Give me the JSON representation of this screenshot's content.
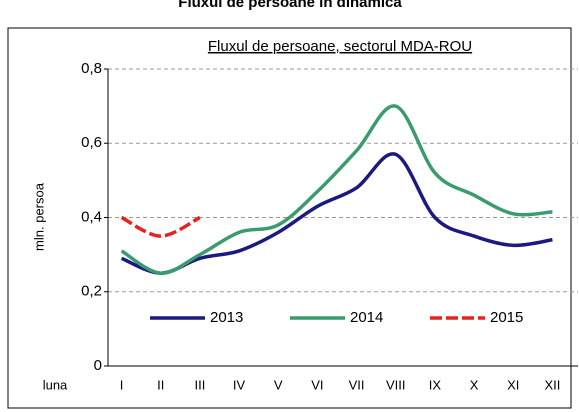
{
  "page_title": "Fluxul de persoane în dinamică",
  "chart_data": {
    "type": "line",
    "title": "Fluxul de persoane, sectorul MDA-ROU",
    "y_label": "mln. persoa",
    "x_label": "luna",
    "categories": [
      "I",
      "II",
      "III",
      "IV",
      "V",
      "VI",
      "VII",
      "VIII",
      "IX",
      "X",
      "XI",
      "XII"
    ],
    "series": [
      {
        "name": "2013",
        "color": "#1a1a80",
        "dashed": false,
        "values": [
          0.29,
          0.25,
          0.29,
          0.31,
          0.36,
          0.43,
          0.48,
          0.57,
          0.4,
          0.35,
          0.325,
          0.34
        ]
      },
      {
        "name": "2014",
        "color": "#3a9c6c",
        "dashed": false,
        "values": [
          0.31,
          0.25,
          0.3,
          0.36,
          0.38,
          0.47,
          0.58,
          0.7,
          0.52,
          0.46,
          0.41,
          0.415
        ]
      },
      {
        "name": "2015",
        "color": "#e8231e",
        "dashed": true,
        "values": [
          0.4,
          0.35,
          0.4,
          null,
          null,
          null,
          null,
          null,
          null,
          null,
          null,
          null
        ]
      }
    ],
    "ylim": [
      0,
      0.8
    ],
    "yticks": [
      {
        "value": 0,
        "label": "0"
      },
      {
        "value": 0.2,
        "label": "0,2"
      },
      {
        "value": 0.4,
        "label": "0,4"
      },
      {
        "value": 0.6,
        "label": "0,6"
      },
      {
        "value": 0.8,
        "label": "0,8"
      }
    ],
    "grid": true,
    "legend": "bottom"
  }
}
